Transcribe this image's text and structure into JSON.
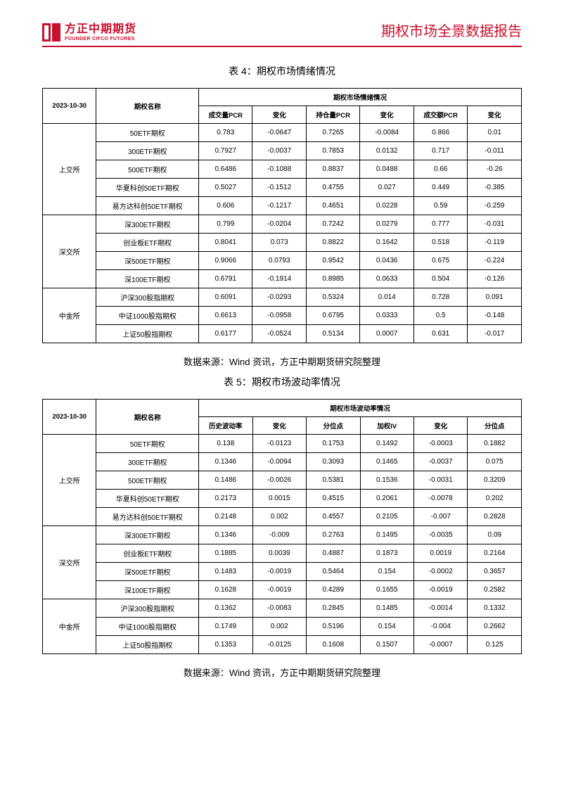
{
  "brand": {
    "name_cn": "方正中期期货",
    "name_en": "FOUNDER CIFCO FUTURES",
    "color": "#c8102e"
  },
  "doc_title": "期权市场全景数据报告",
  "date": "2023-10-30",
  "source_line": "数据来源：Wind 资讯，方正中期期货研究院整理",
  "table4": {
    "title": "表 4：期权市场情绪情况",
    "span_header": "期权市场情绪情况",
    "name_col": "期权名称",
    "columns": [
      "成交量PCR",
      "变化",
      "持仓量PCR",
      "变化",
      "成交额PCR",
      "变化"
    ],
    "groups": [
      {
        "exchange": "上交所",
        "rows": [
          {
            "name": "50ETF期权",
            "v": [
              "0.783",
              "-0.0647",
              "0.7265",
              "-0.0084",
              "0.866",
              "0.01"
            ]
          },
          {
            "name": "300ETF期权",
            "v": [
              "0.7927",
              "-0.0037",
              "0.7853",
              "0.0132",
              "0.717",
              "-0.011"
            ]
          },
          {
            "name": "500ETF期权",
            "v": [
              "0.6486",
              "-0.1088",
              "0.8837",
              "0.0488",
              "0.66",
              "-0.26"
            ]
          },
          {
            "name": "华夏科创50ETF期权",
            "v": [
              "0.5027",
              "-0.1512",
              "0.4755",
              "0.027",
              "0.449",
              "-0.385"
            ]
          },
          {
            "name": "易方达科创50ETF期权",
            "v": [
              "0.606",
              "-0.1217",
              "0.4651",
              "0.0228",
              "0.59",
              "-0.259"
            ]
          }
        ]
      },
      {
        "exchange": "深交所",
        "rows": [
          {
            "name": "深300ETF期权",
            "v": [
              "0.799",
              "-0.0204",
              "0.7242",
              "0.0279",
              "0.777",
              "-0.031"
            ]
          },
          {
            "name": "创业板ETF期权",
            "v": [
              "0.8041",
              "0.073",
              "0.8822",
              "0.1642",
              "0.518",
              "-0.119"
            ]
          },
          {
            "name": "深500ETF期权",
            "v": [
              "0.9066",
              "0.0793",
              "0.9542",
              "0.0436",
              "0.675",
              "-0.224"
            ]
          },
          {
            "name": "深100ETF期权",
            "v": [
              "0.6791",
              "-0.1914",
              "0.8985",
              "0.0633",
              "0.504",
              "-0.126"
            ]
          }
        ]
      },
      {
        "exchange": "中金所",
        "rows": [
          {
            "name": "沪深300股指期权",
            "v": [
              "0.6091",
              "-0.0293",
              "0.5324",
              "0.014",
              "0.728",
              "0.091"
            ]
          },
          {
            "name": "中证1000股指期权",
            "v": [
              "0.6613",
              "-0.0958",
              "0.6795",
              "0.0333",
              "0.5",
              "-0.148"
            ]
          },
          {
            "name": "上证50股指期权",
            "v": [
              "0.6177",
              "-0.0524",
              "0.5134",
              "0.0007",
              "0.631",
              "-0.017"
            ]
          }
        ]
      }
    ]
  },
  "table5": {
    "title": "表 5：期权市场波动率情况",
    "span_header": "期权市场波动率情况",
    "name_col": "期权名称",
    "columns": [
      "历史波动率",
      "变化",
      "分位点",
      "加权IV",
      "变化",
      "分位点"
    ],
    "groups": [
      {
        "exchange": "上交所",
        "rows": [
          {
            "name": "50ETF期权",
            "v": [
              "0.138",
              "-0.0123",
              "0.1753",
              "0.1492",
              "-0.0003",
              "0.1882"
            ]
          },
          {
            "name": "300ETF期权",
            "v": [
              "0.1346",
              "-0.0094",
              "0.3093",
              "0.1465",
              "-0.0037",
              "0.075"
            ]
          },
          {
            "name": "500ETF期权",
            "v": [
              "0.1486",
              "-0.0026",
              "0.5381",
              "0.1536",
              "-0.0031",
              "0.3209"
            ]
          },
          {
            "name": "华夏科创50ETF期权",
            "v": [
              "0.2173",
              "0.0015",
              "0.4515",
              "0.2061",
              "-0.0078",
              "0.202"
            ]
          },
          {
            "name": "易方达科创50ETF期权",
            "v": [
              "0.2148",
              "0.002",
              "0.4557",
              "0.2105",
              "-0.007",
              "0.2828"
            ]
          }
        ]
      },
      {
        "exchange": "深交所",
        "rows": [
          {
            "name": "深300ETF期权",
            "v": [
              "0.1346",
              "-0.009",
              "0.2763",
              "0.1495",
              "-0.0035",
              "0.09"
            ]
          },
          {
            "name": "创业板ETF期权",
            "v": [
              "0.1885",
              "0.0039",
              "0.4887",
              "0.1873",
              "0.0019",
              "0.2164"
            ]
          },
          {
            "name": "深500ETF期权",
            "v": [
              "0.1483",
              "-0.0019",
              "0.5464",
              "0.154",
              "-0.0002",
              "0.3657"
            ]
          },
          {
            "name": "深100ETF期权",
            "v": [
              "0.1628",
              "-0.0019",
              "0.4289",
              "0.1655",
              "-0.0019",
              "0.2582"
            ]
          }
        ]
      },
      {
        "exchange": "中金所",
        "rows": [
          {
            "name": "沪深300股指期权",
            "v": [
              "0.1362",
              "-0.0083",
              "0.2845",
              "0.1485",
              "-0.0014",
              "0.1332"
            ]
          },
          {
            "name": "中证1000股指期权",
            "v": [
              "0.1749",
              "0.002",
              "0.5196",
              "0.154",
              "-0.004",
              "0.2662"
            ]
          },
          {
            "name": "上证50股指期权",
            "v": [
              "0.1353",
              "-0.0125",
              "0.1608",
              "0.1507",
              "-0.0007",
              "0.125"
            ]
          }
        ]
      }
    ]
  }
}
